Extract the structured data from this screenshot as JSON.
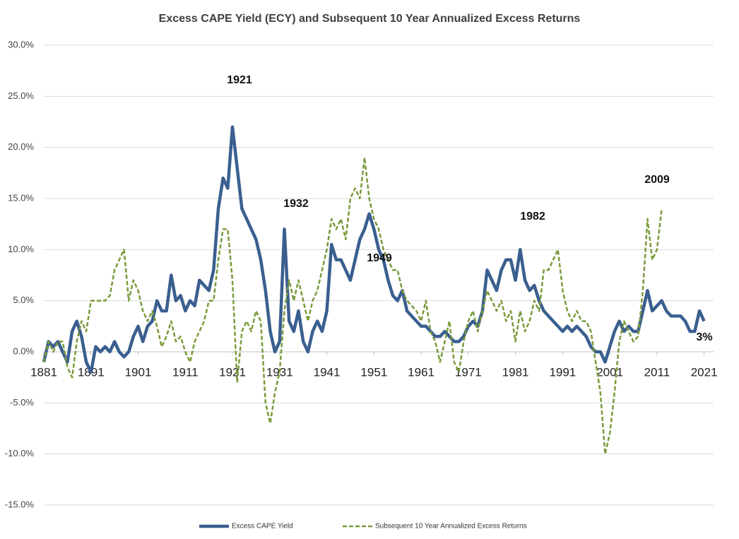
{
  "chart_data": {
    "type": "line",
    "title": "Excess CAPE Yield (ECY) and Subsequent 10 Year Annualized Excess Returns",
    "x": [
      1881,
      1882,
      1883,
      1884,
      1885,
      1886,
      1887,
      1888,
      1889,
      1890,
      1891,
      1892,
      1893,
      1894,
      1895,
      1896,
      1897,
      1898,
      1899,
      1900,
      1901,
      1902,
      1903,
      1904,
      1905,
      1906,
      1907,
      1908,
      1909,
      1910,
      1911,
      1912,
      1913,
      1914,
      1915,
      1916,
      1917,
      1918,
      1919,
      1920,
      1921,
      1922,
      1923,
      1924,
      1925,
      1926,
      1927,
      1928,
      1929,
      1930,
      1931,
      1932,
      1933,
      1934,
      1935,
      1936,
      1937,
      1938,
      1939,
      1940,
      1941,
      1942,
      1943,
      1944,
      1945,
      1946,
      1947,
      1948,
      1949,
      1950,
      1951,
      1952,
      1953,
      1954,
      1955,
      1956,
      1957,
      1958,
      1959,
      1960,
      1961,
      1962,
      1963,
      1964,
      1965,
      1966,
      1967,
      1968,
      1969,
      1970,
      1971,
      1972,
      1973,
      1974,
      1975,
      1976,
      1977,
      1978,
      1979,
      1980,
      1981,
      1982,
      1983,
      1984,
      1985,
      1986,
      1987,
      1988,
      1989,
      1990,
      1991,
      1992,
      1993,
      1994,
      1995,
      1996,
      1997,
      1998,
      1999,
      2000,
      2001,
      2002,
      2003,
      2004,
      2005,
      2006,
      2007,
      2008,
      2009,
      2010,
      2011,
      2012,
      2013,
      2014,
      2015,
      2016,
      2017,
      2018,
      2019,
      2020,
      2021
    ],
    "series": [
      {
        "name": "Excess CAPE Yield",
        "color": "#3a5f8f",
        "style": "solid",
        "values": [
          -1,
          1,
          0.5,
          1,
          0,
          -1,
          2,
          3,
          1.5,
          -1,
          -2,
          0.5,
          0,
          0.5,
          0,
          1,
          0,
          -0.5,
          0,
          1.5,
          2.5,
          1,
          2.5,
          3,
          5,
          4,
          4,
          7.5,
          5,
          5.5,
          4,
          5,
          4.5,
          7,
          6.5,
          6,
          8,
          14,
          17,
          16,
          22,
          18,
          14,
          13,
          12,
          11,
          9,
          6,
          2,
          0,
          1,
          12,
          3,
          2,
          4,
          1,
          0,
          2,
          3,
          2,
          4,
          10.5,
          9,
          9,
          8,
          7,
          9,
          11,
          12,
          13.5,
          12,
          10,
          9,
          7,
          5.5,
          5,
          6,
          4,
          3.5,
          3,
          2.5,
          2.5,
          2,
          1.5,
          1.5,
          2,
          1.5,
          1,
          1,
          1.5,
          2.5,
          3,
          2.5,
          4,
          8,
          7,
          6,
          8,
          9,
          9,
          7,
          10,
          7,
          6,
          6.5,
          5,
          4,
          3.5,
          3,
          2.5,
          2,
          2.5,
          2,
          2.5,
          2,
          1.5,
          0.5,
          0,
          0,
          -1,
          0.5,
          2,
          3,
          2,
          2.5,
          2,
          2,
          4,
          6,
          4,
          4.5,
          5,
          4,
          3.5,
          3.5,
          3.5,
          3,
          2,
          2,
          4,
          3
        ]
      },
      {
        "name": "Subsequent 10 Year Annualized Excess Returns",
        "color": "#7a9a3a",
        "style": "dashed",
        "values": [
          -1,
          1,
          0,
          1,
          1,
          -1.5,
          -2.5,
          1,
          3,
          2,
          5,
          5,
          5,
          5,
          5.5,
          8,
          9,
          10,
          5,
          7,
          6,
          4,
          3,
          4,
          2.5,
          0.5,
          1.5,
          3,
          1,
          1.5,
          0,
          -1,
          1,
          2,
          3,
          5,
          5,
          9,
          12,
          12,
          7,
          -3,
          2,
          3,
          2,
          4,
          3,
          -5,
          -7,
          -4,
          -2,
          4,
          7,
          5,
          7,
          5,
          3,
          5,
          6,
          8,
          10,
          13,
          12,
          13,
          11,
          15,
          16,
          15,
          19,
          15,
          13,
          12,
          10,
          9,
          8,
          8,
          6,
          5,
          4.5,
          4,
          3,
          5,
          2,
          1,
          -1,
          1,
          3,
          -1,
          -2,
          1,
          3,
          4,
          2,
          4,
          6,
          5,
          4,
          5,
          3,
          4,
          1,
          4,
          2,
          3,
          5,
          4,
          8,
          8,
          9,
          10,
          6,
          4,
          3,
          4,
          3,
          3,
          2,
          -1,
          -4,
          -10,
          -8,
          -4,
          1,
          3,
          2,
          1,
          1.5,
          6,
          13,
          9,
          10,
          14,
          null,
          null,
          null,
          null,
          null,
          null,
          null,
          null,
          null
        ]
      }
    ],
    "xlim": [
      1881,
      2023
    ],
    "xticks": [
      1881,
      1891,
      1901,
      1911,
      1921,
      1931,
      1941,
      1951,
      1961,
      1971,
      1981,
      1991,
      2001,
      2011,
      2021
    ],
    "ylim": [
      -15,
      30
    ],
    "yticks": [
      {
        "value": -15,
        "label": "-15.0%"
      },
      {
        "value": -10,
        "label": "-10.0%"
      },
      {
        "value": -5,
        "label": "-5.0%"
      },
      {
        "value": 0,
        "label": "0.0%"
      },
      {
        "value": 5,
        "label": "5.0%"
      },
      {
        "value": 10,
        "label": "10.0%"
      },
      {
        "value": 15,
        "label": "15.0%"
      },
      {
        "value": 20,
        "label": "20.0%"
      },
      {
        "value": 25,
        "label": "25.0%"
      },
      {
        "value": 30,
        "label": "30.0%"
      }
    ],
    "grid": true,
    "legend": "bottom",
    "annotations": [
      "1921",
      "1932",
      "1949",
      "1982",
      "2009",
      "3%"
    ]
  }
}
